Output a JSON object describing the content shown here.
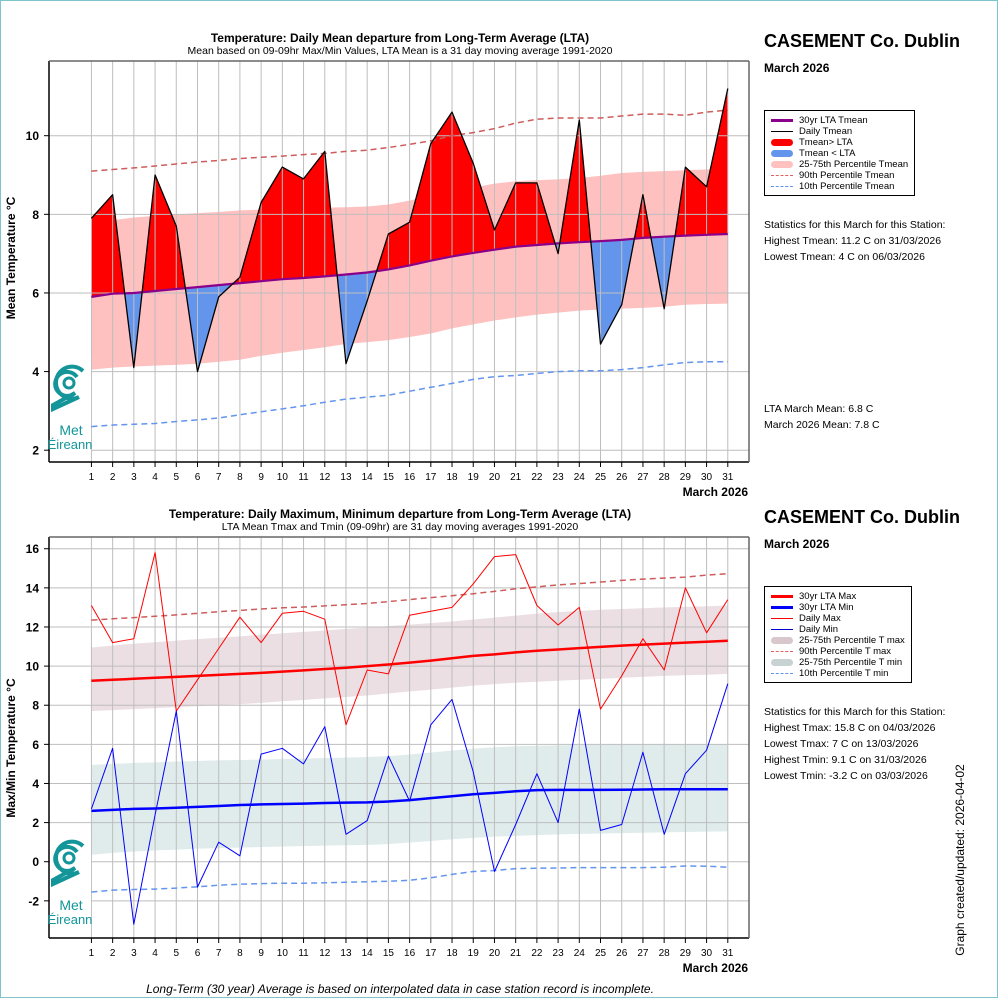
{
  "station": "CASEMENT Co. Dublin",
  "month_label": "March 2026",
  "footnote": "Long-Term (30 year) Average is based on interpolated data in case station record is incomplete.",
  "updated_label": "Graph created/updated:  2026-04-02",
  "logo": {
    "line1": "Met",
    "line2": "Éireann",
    "icon": "met-eireann-swirl-icon"
  },
  "colors": {
    "red": "#ff0000",
    "blue_fill": "#6495ed",
    "purple": "#8b008b",
    "pink_band": "#ffc0c0",
    "p90_mean": "#cd5c5c",
    "p10": "#6495ed",
    "tmax_band": "#ecdfe3",
    "tmin_band": "#dfeceb",
    "lta_min": "#0000ff",
    "daily_min": "#0000ff",
    "grid": "#bebebe",
    "border": "#7ec4cc"
  },
  "chart_data": [
    {
      "id": "mean",
      "type": "area",
      "title": "Temperature: Daily Mean departure from Long-Term Average (LTA)",
      "subtitle": "Mean based on 09-09hr Max/Min Values, LTA Mean is a 31 day moving average 1991-2020",
      "xlabel": "March 2026",
      "ylabel": "Mean Temperature °C",
      "x": [
        1,
        2,
        3,
        4,
        5,
        6,
        7,
        8,
        9,
        10,
        11,
        12,
        13,
        14,
        15,
        16,
        17,
        18,
        19,
        20,
        21,
        22,
        23,
        24,
        25,
        26,
        27,
        28,
        29,
        30,
        31
      ],
      "xlim": [
        -1,
        32
      ],
      "ylim": [
        1.7,
        11.9
      ],
      "yticks": [
        2,
        4,
        6,
        8,
        10
      ],
      "grid": true,
      "series": [
        {
          "name": "Daily Tmean",
          "values": [
            7.9,
            8.5,
            4.1,
            9.0,
            7.7,
            4.0,
            5.9,
            6.4,
            8.3,
            9.2,
            8.9,
            9.6,
            4.2,
            5.8,
            7.5,
            7.8,
            9.8,
            10.6,
            9.3,
            7.6,
            8.8,
            8.8,
            7.0,
            10.4,
            4.7,
            5.7,
            8.5,
            5.6,
            9.2,
            8.7,
            11.2
          ]
        },
        {
          "name": "30yr LTA Tmean",
          "values": [
            5.9,
            5.98,
            6.0,
            6.05,
            6.1,
            6.15,
            6.2,
            6.25,
            6.3,
            6.35,
            6.38,
            6.42,
            6.47,
            6.52,
            6.6,
            6.7,
            6.82,
            6.93,
            7.02,
            7.1,
            7.18,
            7.22,
            7.26,
            7.29,
            7.32,
            7.35,
            7.4,
            7.43,
            7.46,
            7.48,
            7.5
          ]
        },
        {
          "name": "25th Percentile Tmean",
          "values": [
            4.05,
            4.1,
            4.13,
            4.15,
            4.17,
            4.2,
            4.25,
            4.3,
            4.4,
            4.48,
            4.55,
            4.62,
            4.7,
            4.75,
            4.8,
            4.88,
            4.97,
            5.1,
            5.2,
            5.3,
            5.38,
            5.45,
            5.5,
            5.55,
            5.58,
            5.6,
            5.62,
            5.65,
            5.7,
            5.72,
            5.73
          ]
        },
        {
          "name": "75th Percentile Tmean",
          "values": [
            7.72,
            7.85,
            7.92,
            7.96,
            8.0,
            8.03,
            8.06,
            8.1,
            8.12,
            8.14,
            8.15,
            8.17,
            8.18,
            8.2,
            8.25,
            8.35,
            8.48,
            8.58,
            8.68,
            8.78,
            8.84,
            8.87,
            8.89,
            8.92,
            8.98,
            9.05,
            9.08,
            9.1,
            9.12,
            9.14,
            9.18
          ]
        },
        {
          "name": "90th Percentile Tmean",
          "values": [
            9.1,
            9.14,
            9.18,
            9.23,
            9.28,
            9.33,
            9.37,
            9.42,
            9.45,
            9.48,
            9.52,
            9.55,
            9.6,
            9.63,
            9.7,
            9.78,
            9.87,
            10.0,
            10.08,
            10.18,
            10.32,
            10.42,
            10.45,
            10.45,
            10.45,
            10.5,
            10.55,
            10.55,
            10.52,
            10.6,
            10.65
          ]
        },
        {
          "name": "10th Percentile Tmean",
          "values": [
            2.6,
            2.64,
            2.66,
            2.68,
            2.73,
            2.77,
            2.82,
            2.9,
            2.98,
            3.05,
            3.13,
            3.22,
            3.3,
            3.35,
            3.4,
            3.5,
            3.6,
            3.7,
            3.8,
            3.87,
            3.9,
            3.95,
            4.0,
            4.02,
            4.02,
            4.05,
            4.1,
            4.17,
            4.23,
            4.25,
            4.25
          ]
        }
      ],
      "legend": {
        "placement": "right",
        "entries": [
          {
            "label": "30yr LTA Tmean",
            "style": "thick-line",
            "color": "#8b008b"
          },
          {
            "label": "Daily Tmean",
            "style": "line",
            "color": "#000000"
          },
          {
            "label": "Tmean> LTA",
            "style": "band",
            "color": "#ff0000"
          },
          {
            "label": "Tmean < LTA",
            "style": "band",
            "color": "#6495ed"
          },
          {
            "label": "25-75th Percentile Tmean",
            "style": "band",
            "color": "#ffc0c0"
          },
          {
            "label": "90th Percentile Tmean",
            "style": "dash",
            "color": "#e06060"
          },
          {
            "label": "10th Percentile Tmean",
            "style": "dash",
            "color": "#6495ed"
          }
        ]
      },
      "stats": [
        "Statistics for this March for this Station:",
        "Highest Tmean: 11.2 C on 31/03/2026",
        "Lowest Tmean: 4 C on 06/03/2026"
      ],
      "means": [
        "LTA March Mean: 6.8 C",
        "March 2026 Mean: 7.8 C"
      ]
    },
    {
      "id": "maxmin",
      "type": "line",
      "title": "Temperature: Daily Maximum, Minimum departure from Long-Term Average (LTA)",
      "subtitle": "LTA Mean Tmax and Tmin (09-09hr) are 31 day moving averages 1991-2020",
      "xlabel": "March 2026",
      "ylabel": "Max/Min Temperature °C",
      "x": [
        1,
        2,
        3,
        4,
        5,
        6,
        7,
        8,
        9,
        10,
        11,
        12,
        13,
        14,
        15,
        16,
        17,
        18,
        19,
        20,
        21,
        22,
        23,
        24,
        25,
        26,
        27,
        28,
        29,
        30,
        31
      ],
      "xlim": [
        -1,
        32
      ],
      "ylim": [
        -3.9,
        16.6
      ],
      "yticks": [
        -2,
        0,
        2,
        4,
        6,
        8,
        10,
        12,
        14,
        16
      ],
      "grid": true,
      "series": [
        {
          "name": "Daily Max",
          "values": [
            13.1,
            11.2,
            11.4,
            15.8,
            7.7,
            9.3,
            10.9,
            12.5,
            11.2,
            12.7,
            12.8,
            12.4,
            7.0,
            9.8,
            9.6,
            12.6,
            12.8,
            13.0,
            14.2,
            15.6,
            15.7,
            13.1,
            12.1,
            13.0,
            7.8,
            9.5,
            11.4,
            9.8,
            14.0,
            11.7,
            13.4
          ]
        },
        {
          "name": "Daily Min",
          "values": [
            2.7,
            5.8,
            -3.2,
            2.4,
            7.7,
            -1.3,
            1.0,
            0.3,
            5.5,
            5.8,
            5.0,
            6.9,
            1.4,
            2.1,
            5.4,
            3.1,
            7.0,
            8.3,
            4.6,
            -0.5,
            1.9,
            4.5,
            2.0,
            7.8,
            1.6,
            1.9,
            5.6,
            1.4,
            4.5,
            5.7,
            9.1
          ]
        },
        {
          "name": "30yr LTA Max",
          "values": [
            9.25,
            9.3,
            9.35,
            9.4,
            9.45,
            9.5,
            9.55,
            9.6,
            9.65,
            9.72,
            9.78,
            9.85,
            9.92,
            10.0,
            10.08,
            10.18,
            10.28,
            10.4,
            10.52,
            10.6,
            10.7,
            10.78,
            10.85,
            10.92,
            10.98,
            11.05,
            11.1,
            11.15,
            11.2,
            11.25,
            11.3
          ]
        },
        {
          "name": "30yr LTA Min",
          "values": [
            2.6,
            2.65,
            2.7,
            2.72,
            2.76,
            2.8,
            2.85,
            2.9,
            2.93,
            2.95,
            2.97,
            3.0,
            3.02,
            3.03,
            3.08,
            3.15,
            3.25,
            3.35,
            3.45,
            3.52,
            3.6,
            3.66,
            3.67,
            3.67,
            3.67,
            3.68,
            3.69,
            3.7,
            3.7,
            3.7,
            3.7
          ]
        },
        {
          "name": "25th Percentile T max",
          "values": [
            7.7,
            7.75,
            7.8,
            7.85,
            7.9,
            7.95,
            8.0,
            8.05,
            8.12,
            8.2,
            8.27,
            8.35,
            8.42,
            8.5,
            8.6,
            8.7,
            8.8,
            8.9,
            9.0,
            9.08,
            9.15,
            9.2,
            9.25,
            9.3,
            9.35,
            9.4,
            9.45,
            9.5,
            9.53,
            9.56,
            9.6
          ]
        },
        {
          "name": "75th Percentile T max",
          "values": [
            10.95,
            11.05,
            11.15,
            11.22,
            11.3,
            11.38,
            11.45,
            11.52,
            11.6,
            11.68,
            11.75,
            11.82,
            11.9,
            11.97,
            12.05,
            12.12,
            12.2,
            12.28,
            12.38,
            12.48,
            12.58,
            12.68,
            12.76,
            12.82,
            12.88,
            12.92,
            12.96,
            13.0,
            13.03,
            13.06,
            13.1
          ]
        },
        {
          "name": "90th Percentile T max",
          "values": [
            12.35,
            12.42,
            12.48,
            12.55,
            12.62,
            12.7,
            12.78,
            12.85,
            12.92,
            12.98,
            13.02,
            13.08,
            13.14,
            13.2,
            13.3,
            13.4,
            13.5,
            13.6,
            13.7,
            13.82,
            13.95,
            14.05,
            14.15,
            14.22,
            14.3,
            14.38,
            14.45,
            14.5,
            14.55,
            14.65,
            14.72
          ]
        },
        {
          "name": "25th Percentile T min",
          "values": [
            0.35,
            0.45,
            0.52,
            0.58,
            0.62,
            0.66,
            0.7,
            0.72,
            0.75,
            0.78,
            0.8,
            0.82,
            0.84,
            0.86,
            0.9,
            0.98,
            1.06,
            1.15,
            1.22,
            1.28,
            1.32,
            1.36,
            1.4,
            1.42,
            1.44,
            1.46,
            1.48,
            1.5,
            1.52,
            1.54,
            1.55
          ]
        },
        {
          "name": "75th Percentile T min",
          "values": [
            4.95,
            5.0,
            5.05,
            5.08,
            5.12,
            5.15,
            5.18,
            5.2,
            5.22,
            5.25,
            5.27,
            5.3,
            5.32,
            5.35,
            5.4,
            5.48,
            5.58,
            5.68,
            5.78,
            5.85,
            5.9,
            5.93,
            5.95,
            5.97,
            5.98,
            5.99,
            6.0,
            6.0,
            6.0,
            6.0,
            6.0
          ]
        },
        {
          "name": "10th Percentile T min",
          "values": [
            -1.55,
            -1.45,
            -1.42,
            -1.4,
            -1.35,
            -1.28,
            -1.2,
            -1.15,
            -1.12,
            -1.1,
            -1.1,
            -1.08,
            -1.05,
            -1.02,
            -1.0,
            -0.95,
            -0.82,
            -0.65,
            -0.5,
            -0.45,
            -0.35,
            -0.33,
            -0.32,
            -0.3,
            -0.3,
            -0.3,
            -0.3,
            -0.28,
            -0.22,
            -0.23,
            -0.28
          ]
        }
      ],
      "legend": {
        "placement": "right",
        "entries": [
          {
            "label": "30yr LTA Max",
            "style": "thick-line",
            "color": "#ff0000"
          },
          {
            "label": "30yr LTA Min",
            "style": "thick-line",
            "color": "#0000ff"
          },
          {
            "label": "Daily Max",
            "style": "line",
            "color": "#ff0000"
          },
          {
            "label": "Daily Min",
            "style": "line",
            "color": "#0000cd"
          },
          {
            "label": "25-75th Percentile T max",
            "style": "band",
            "color": "#d8c8cc"
          },
          {
            "label": "90th Percentile T max",
            "style": "dash",
            "color": "#e06060"
          },
          {
            "label": "25-75th Percentile T min",
            "style": "band",
            "color": "#c8d2d2"
          },
          {
            "label": "10th Percentile T min",
            "style": "dash",
            "color": "#6495ed"
          }
        ]
      },
      "stats": [
        "Statistics for this March for this Station:",
        "Highest Tmax: 15.8 C on 04/03/2026",
        "Lowest Tmax: 7 C on 13/03/2026",
        "Highest Tmin: 9.1 C on 31/03/2026",
        "Lowest Tmin: -3.2 C on 03/03/2026"
      ]
    }
  ]
}
